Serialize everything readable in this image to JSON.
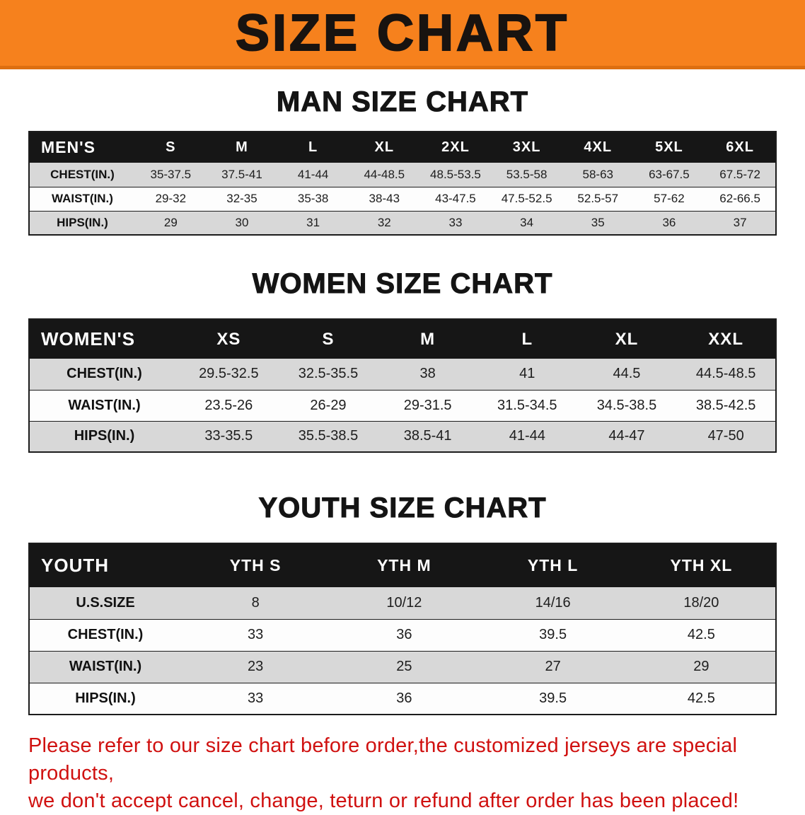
{
  "banner": {
    "title": "SIZE CHART"
  },
  "sections": [
    {
      "heading": "MAN SIZE CHART",
      "table": {
        "header": [
          "MEN'S",
          "S",
          "M",
          "L",
          "XL",
          "2XL",
          "3XL",
          "4XL",
          "5XL",
          "6XL"
        ],
        "rows": [
          [
            "CHEST(IN.)",
            "35-37.5",
            "37.5-41",
            "41-44",
            "44-48.5",
            "48.5-53.5",
            "53.5-58",
            "58-63",
            "63-67.5",
            "67.5-72"
          ],
          [
            "WAIST(IN.)",
            "29-32",
            "32-35",
            "35-38",
            "38-43",
            "43-47.5",
            "47.5-52.5",
            "52.5-57",
            "57-62",
            "62-66.5"
          ],
          [
            "HIPS(IN.)",
            "29",
            "30",
            "31",
            "32",
            "33",
            "34",
            "35",
            "36",
            "37"
          ]
        ]
      }
    },
    {
      "heading": "WOMEN SIZE CHART",
      "table": {
        "header": [
          "WOMEN'S",
          "XS",
          "S",
          "M",
          "L",
          "XL",
          "XXL"
        ],
        "rows": [
          [
            "CHEST(IN.)",
            "29.5-32.5",
            "32.5-35.5",
            "38",
            "41",
            "44.5",
            "44.5-48.5"
          ],
          [
            "WAIST(IN.)",
            "23.5-26",
            "26-29",
            "29-31.5",
            "31.5-34.5",
            "34.5-38.5",
            "38.5-42.5"
          ],
          [
            "HIPS(IN.)",
            "33-35.5",
            "35.5-38.5",
            "38.5-41",
            "41-44",
            "44-47",
            "47-50"
          ]
        ]
      }
    },
    {
      "heading": "YOUTH SIZE CHART",
      "table": {
        "header": [
          "YOUTH",
          "YTH S",
          "YTH M",
          "YTH L",
          "YTH XL"
        ],
        "rows": [
          [
            "U.S.SIZE",
            "8",
            "10/12",
            "14/16",
            "18/20"
          ],
          [
            "CHEST(IN.)",
            "33",
            "36",
            "39.5",
            "42.5"
          ],
          [
            "WAIST(IN.)",
            "23",
            "25",
            "27",
            "29"
          ],
          [
            "HIPS(IN.)",
            "33",
            "36",
            "39.5",
            "42.5"
          ]
        ]
      }
    }
  ],
  "disclaimer": {
    "line1": "Please refer to our size chart before order,the customized jerseys are special products,",
    "line2": "we don't accept cancel, change, teturn or refund after order has been placed!"
  },
  "colors": {
    "banner_bg": "#f6811d",
    "banner_text": "#181310",
    "header_bg": "#161616",
    "header_text": "#ffffff",
    "row_alt_bg": "#d8d8d8",
    "row_bg": "#fdfdfd",
    "border": "#1c1c1c",
    "disclaimer_text": "#d01110"
  }
}
